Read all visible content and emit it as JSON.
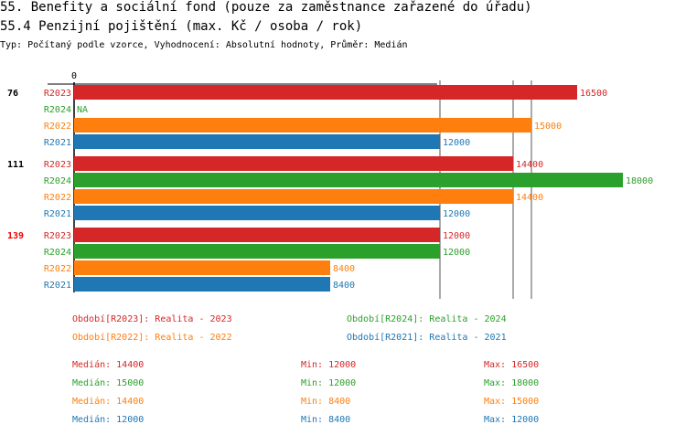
{
  "title": "55. Benefity a sociální fond (pouze za zaměstnance zařazené do úřadu)",
  "subtitle": "55.4 Penzijní pojištění (max. Kč / osoba / rok)",
  "info": "Typ: Počítaný podle vzorce, Vyhodnocení: Absolutní hodnoty, Průměr: Medián",
  "chart_data": {
    "type": "bar",
    "orientation": "horizontal",
    "axis_tick_label": "0",
    "xlim": [
      0,
      18000
    ],
    "colors": {
      "R2023": "#d62728",
      "R2024": "#2ca02c",
      "R2022": "#ff7f0e",
      "R2021": "#1f77b4"
    },
    "groups": [
      {
        "label": "76",
        "highlight": false,
        "bars": [
          {
            "series": "R2023",
            "value": 16500,
            "label": "16500"
          },
          {
            "series": "R2024",
            "value": null,
            "label": "NA"
          },
          {
            "series": "R2022",
            "value": 15000,
            "label": "15000"
          },
          {
            "series": "R2021",
            "value": 12000,
            "label": "12000"
          }
        ]
      },
      {
        "label": "111",
        "highlight": false,
        "bars": [
          {
            "series": "R2023",
            "value": 14400,
            "label": "14400"
          },
          {
            "series": "R2024",
            "value": 18000,
            "label": "18000"
          },
          {
            "series": "R2022",
            "value": 14400,
            "label": "14400"
          },
          {
            "series": "R2021",
            "value": 12000,
            "label": "12000"
          }
        ]
      },
      {
        "label": "139",
        "highlight": true,
        "bars": [
          {
            "series": "R2023",
            "value": 12000,
            "label": "12000"
          },
          {
            "series": "R2024",
            "value": 12000,
            "label": "12000"
          },
          {
            "series": "R2022",
            "value": 8400,
            "label": "8400"
          },
          {
            "series": "R2021",
            "value": 8400,
            "label": "8400"
          }
        ]
      }
    ],
    "median_lines": [
      {
        "series": "R2021",
        "value": 12000
      },
      {
        "series": "R2022",
        "value": 14400
      },
      {
        "series": "R2024",
        "value": 15000
      }
    ],
    "legend": [
      {
        "series": "R2023",
        "text": "Období[R2023]: Realita - 2023"
      },
      {
        "series": "R2024",
        "text": "Období[R2024]: Realita - 2024"
      },
      {
        "series": "R2022",
        "text": "Období[R2022]: Realita - 2022"
      },
      {
        "series": "R2021",
        "text": "Období[R2021]: Realita - 2021"
      }
    ],
    "stats": [
      {
        "series": "R2023",
        "median": "Medián: 14400",
        "min": "Min: 12000",
        "max": "Max: 16500"
      },
      {
        "series": "R2024",
        "median": "Medián: 15000",
        "min": "Min: 12000",
        "max": "Max: 18000"
      },
      {
        "series": "R2022",
        "median": "Medián: 14400",
        "min": "Min: 8400",
        "max": "Max: 15000"
      },
      {
        "series": "R2021",
        "median": "Medián: 12000",
        "min": "Min: 8400",
        "max": "Max: 12000"
      }
    ]
  }
}
